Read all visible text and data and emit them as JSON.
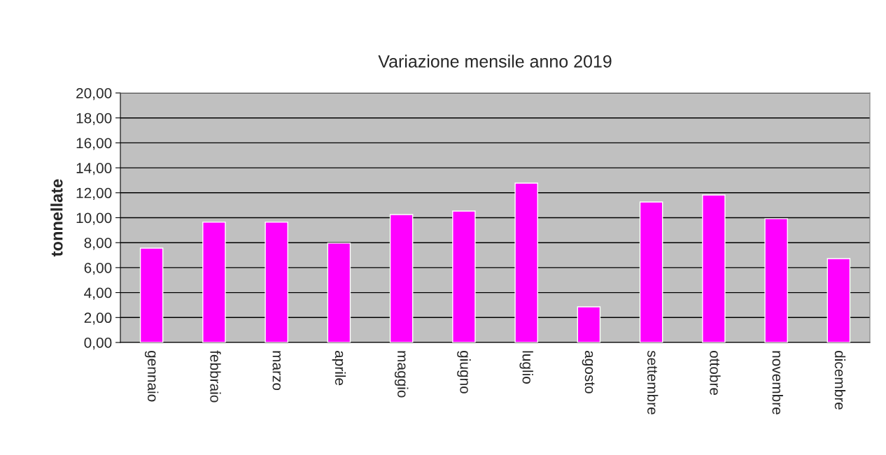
{
  "chart_data": {
    "type": "bar",
    "title": "Variazione mensile anno 2019",
    "ylabel": "tonnellate",
    "categories": [
      "gennaio",
      "febbraio",
      "marzo",
      "aprile",
      "maggio",
      "giugno",
      "luglio",
      "agosto",
      "settembre",
      "ottobre",
      "novembre",
      "dicembre"
    ],
    "values": [
      7.56,
      9.64,
      9.64,
      7.96,
      10.25,
      10.53,
      12.77,
      2.86,
      11.26,
      11.82,
      9.92,
      6.72
    ],
    "color": "#ff00ff",
    "ylim": [
      0,
      20
    ],
    "yticks": [
      {
        "value": 0,
        "label": "0,00"
      },
      {
        "value": 2,
        "label": "2,00"
      },
      {
        "value": 4,
        "label": "4,00"
      },
      {
        "value": 6,
        "label": "6,00"
      },
      {
        "value": 8,
        "label": "8,00"
      },
      {
        "value": 10,
        "label": "10,00"
      },
      {
        "value": 12,
        "label": "12,00"
      },
      {
        "value": 14,
        "label": "14,00"
      },
      {
        "value": 16,
        "label": "16,00"
      },
      {
        "value": 18,
        "label": "18,00"
      },
      {
        "value": 20,
        "label": "20,00"
      }
    ],
    "grid": "y",
    "legend": false
  }
}
